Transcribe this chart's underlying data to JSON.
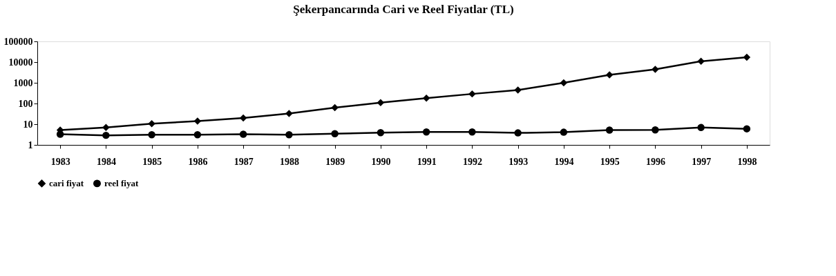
{
  "chart_data": {
    "type": "line",
    "title": "Şekerpancarında Cari ve Reel Fiyatlar (TL)",
    "categories": [
      "1983",
      "1984",
      "1985",
      "1986",
      "1987",
      "1988",
      "1989",
      "1990",
      "1991",
      "1992",
      "1993",
      "1994",
      "1995",
      "1996",
      "1997",
      "1998"
    ],
    "series": [
      {
        "name": "cari fiyat",
        "color": "#000000",
        "marker": "diamond",
        "values": [
          5.2,
          6.9,
          10.6,
          14,
          20,
          33,
          63,
          110,
          180,
          290,
          450,
          1000,
          2400,
          4500,
          11000,
          17000
        ]
      },
      {
        "name": "reel fiyat",
        "color": "#000000",
        "marker": "circle",
        "values": [
          3.3,
          2.9,
          3.1,
          3.1,
          3.3,
          3.1,
          3.5,
          3.9,
          4.2,
          4.2,
          3.8,
          4.1,
          5.2,
          5.3,
          6.9,
          6.0
        ]
      }
    ],
    "log": "y",
    "ylim": [
      1,
      100000
    ],
    "yticks": [
      1,
      10,
      100,
      1000,
      10000,
      100000
    ],
    "grid": false,
    "legend": "bottom",
    "line_style": "solid"
  }
}
